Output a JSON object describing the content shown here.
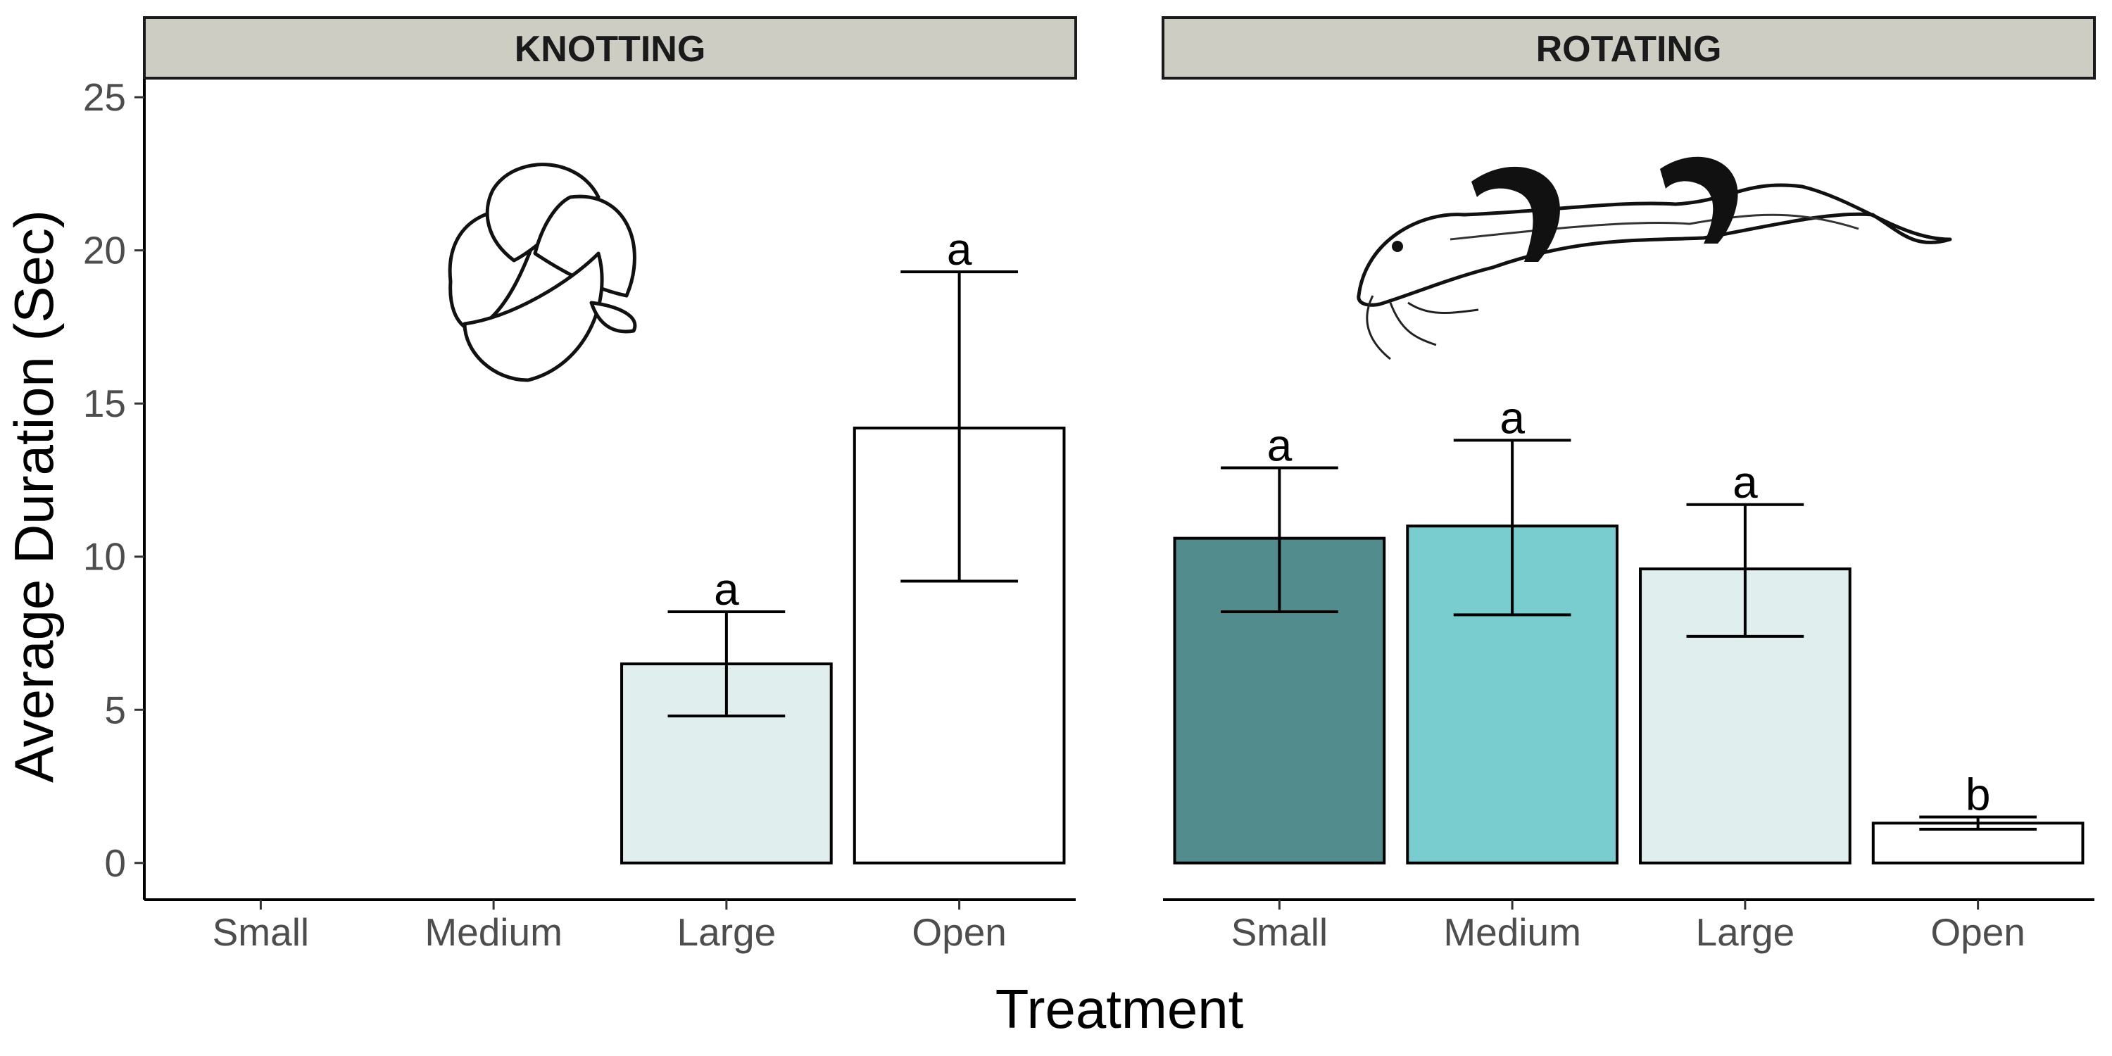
{
  "chart_data": {
    "type": "bar",
    "xlabel": "Treatment",
    "ylabel": "Average Duration (Sec)",
    "ylim": [
      -1.2,
      25.6
    ],
    "yticks": [
      0,
      5,
      10,
      15,
      20,
      25
    ],
    "categories": [
      "Small",
      "Medium",
      "Large",
      "Open"
    ],
    "fill_colors": {
      "Small": "#528c8c",
      "Medium": "#7acdce",
      "Large": "#e0eeed",
      "Open": "#ffffff"
    },
    "panels": [
      {
        "strip": "KNOTTING",
        "illustration": "knotted-eel-illustration",
        "bars": [
          {
            "category": "Large",
            "value": 6.5,
            "err_low": 4.8,
            "err_high": 8.2,
            "sig": "a"
          },
          {
            "category": "Open",
            "value": 14.2,
            "err_low": 9.2,
            "err_high": 19.3,
            "sig": "a"
          }
        ]
      },
      {
        "strip": "ROTATING",
        "illustration": "rotating-eel-illustration",
        "bars": [
          {
            "category": "Small",
            "value": 10.6,
            "err_low": 8.2,
            "err_high": 12.9,
            "sig": "a"
          },
          {
            "category": "Medium",
            "value": 11.0,
            "err_low": 8.1,
            "err_high": 13.8,
            "sig": "a"
          },
          {
            "category": "Large",
            "value": 9.6,
            "err_low": 7.4,
            "err_high": 11.7,
            "sig": "a"
          },
          {
            "category": "Open",
            "value": 1.3,
            "err_low": 1.1,
            "err_high": 1.5,
            "sig": "b"
          }
        ]
      }
    ]
  }
}
